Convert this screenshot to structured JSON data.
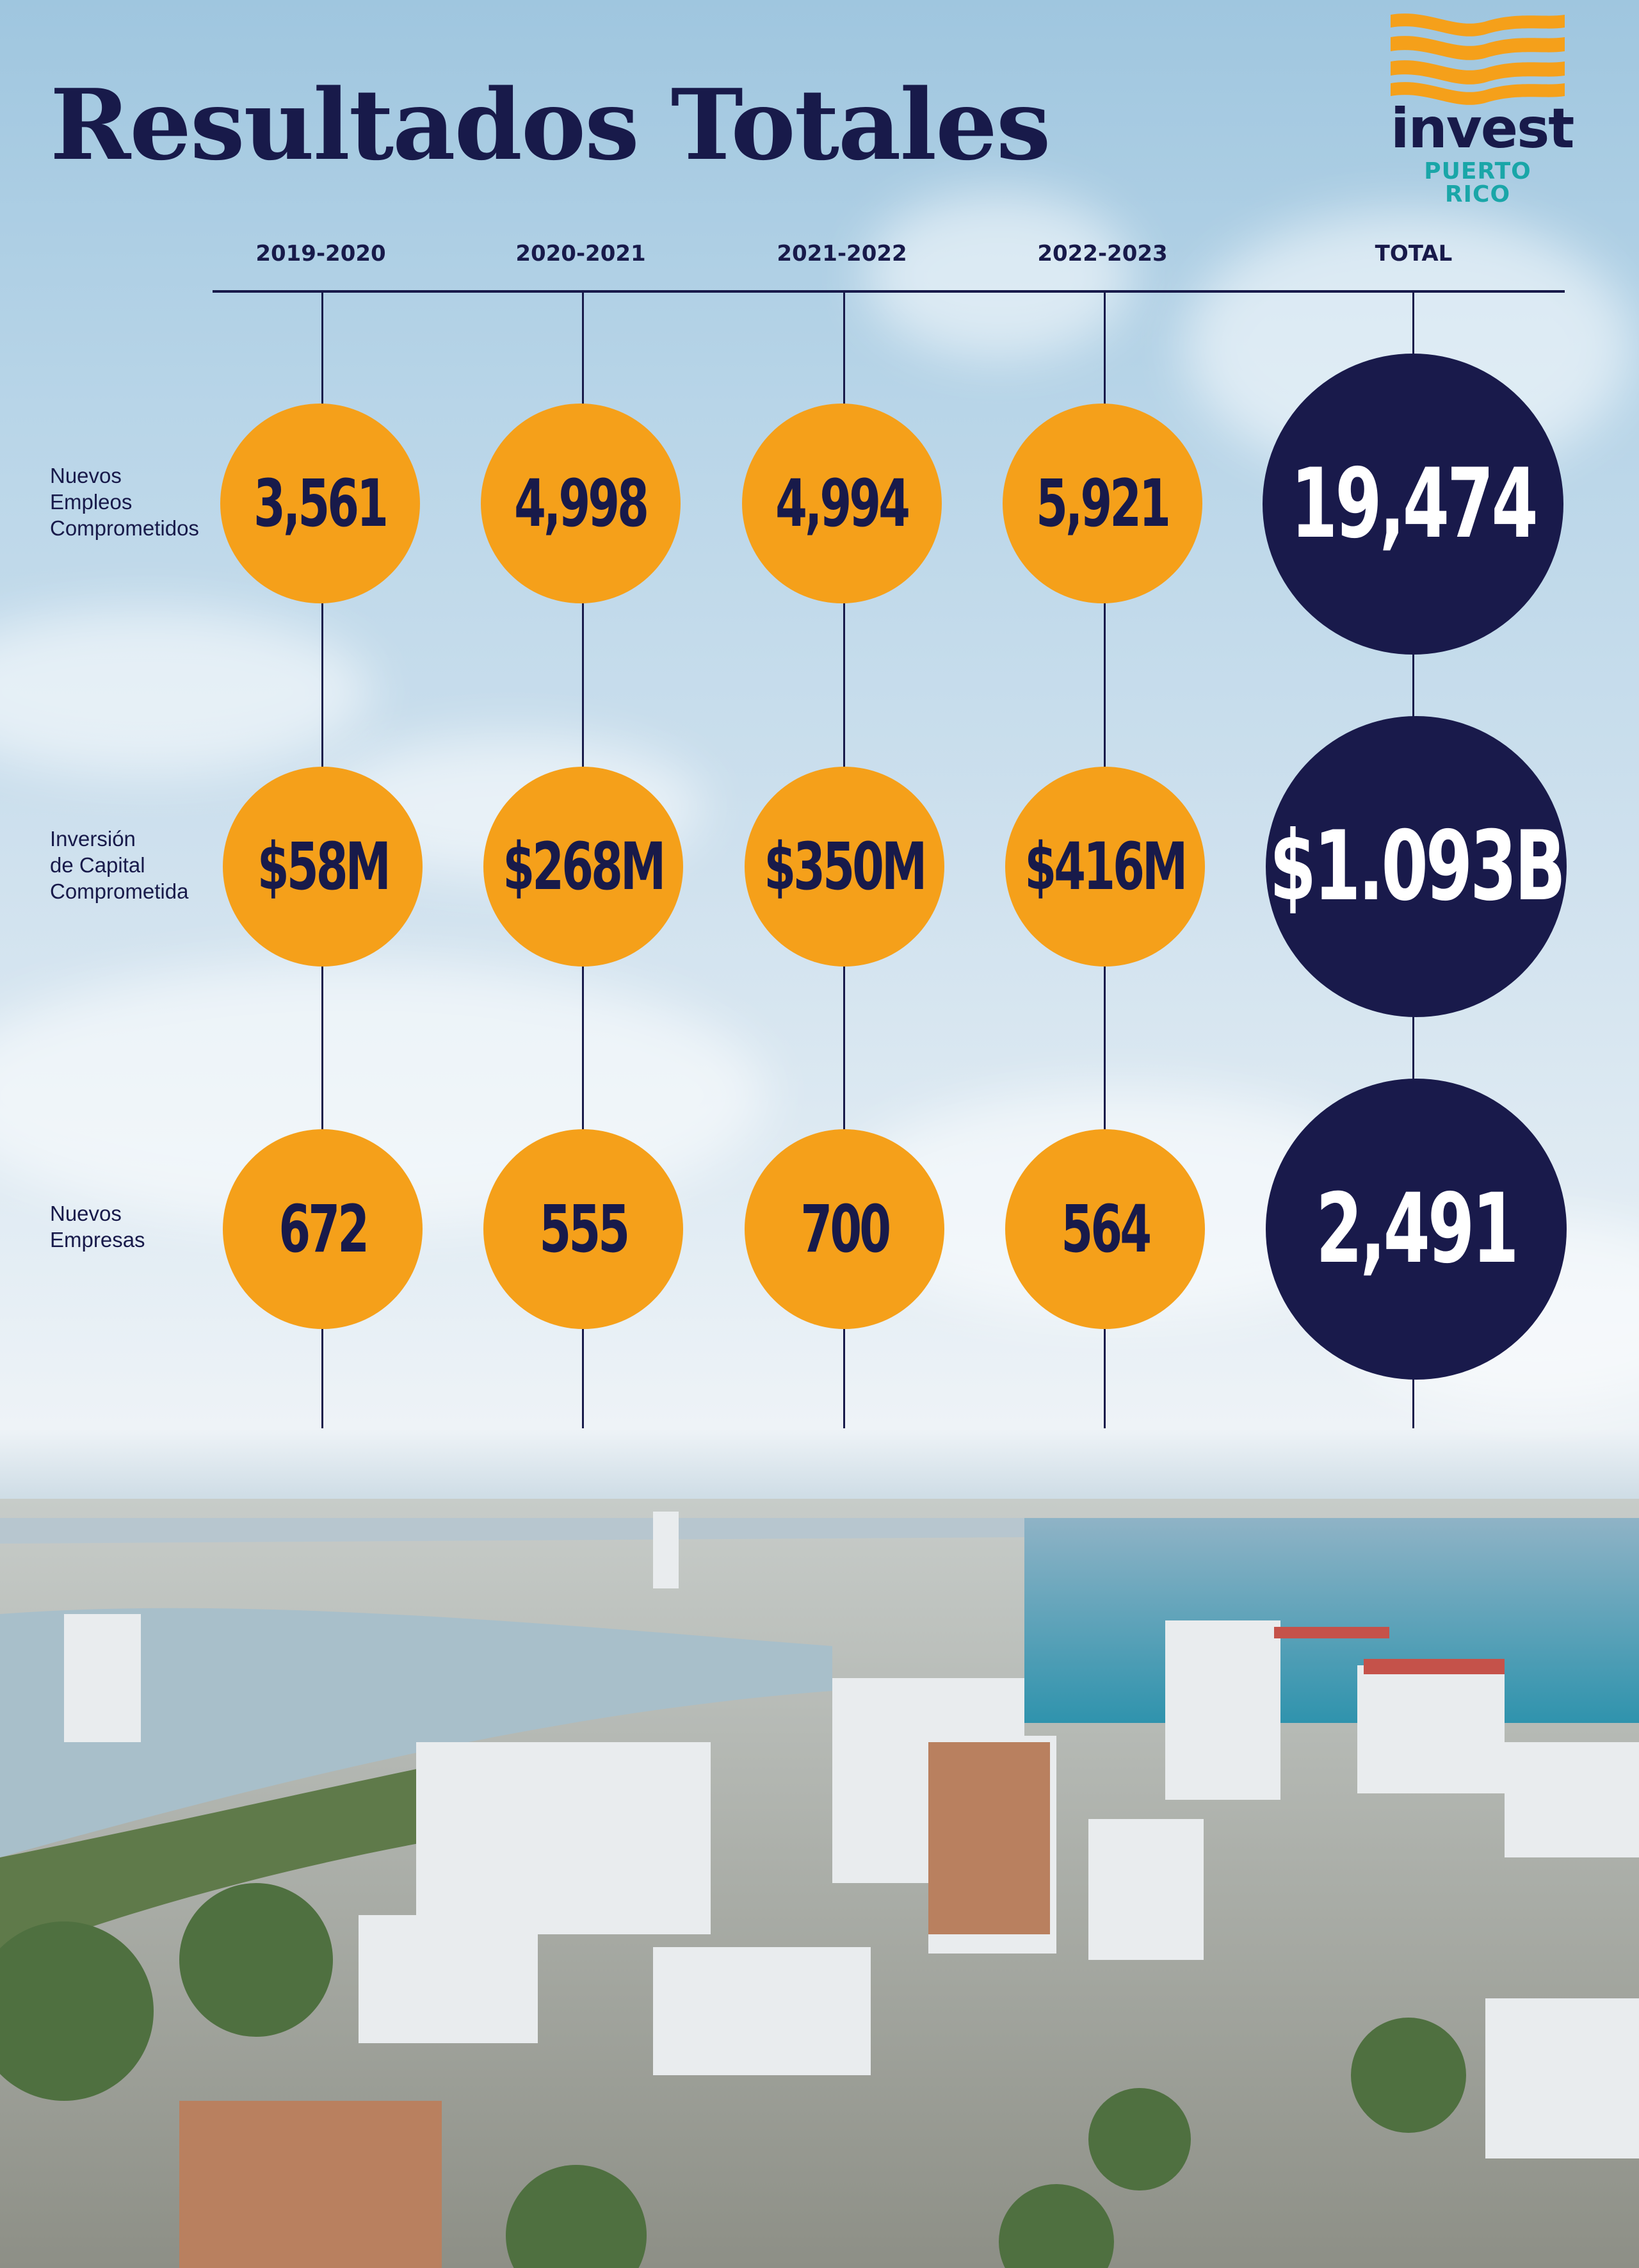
{
  "title": "Resultados Totales",
  "logo": {
    "word": "invest",
    "subtitle": "PUERTO RICO",
    "icon": "orange-waves-logo-icon"
  },
  "columns": [
    "2019-2020",
    "2020-2021",
    "2021-2022",
    "2022-2023",
    "TOTAL"
  ],
  "rows": [
    {
      "label": [
        "Nuevos",
        "Empleos",
        "Comprometidos"
      ],
      "values": [
        "3,561",
        "4,998",
        "4,994",
        "5,921"
      ],
      "total": "19,474"
    },
    {
      "label": [
        "Inversión",
        "de Capital",
        "Comprometida"
      ],
      "values": [
        "$58M",
        "$268M",
        "$350M",
        "$416M"
      ],
      "total": "$1.093B"
    },
    {
      "label": [
        "Nuevos",
        "Empresas"
      ],
      "values": [
        "672",
        "555",
        "700",
        "564"
      ],
      "total": "2,491"
    }
  ],
  "colors": {
    "navy": "#191a4b",
    "orange": "#f5a01a",
    "teal": "#1aa6a8"
  }
}
